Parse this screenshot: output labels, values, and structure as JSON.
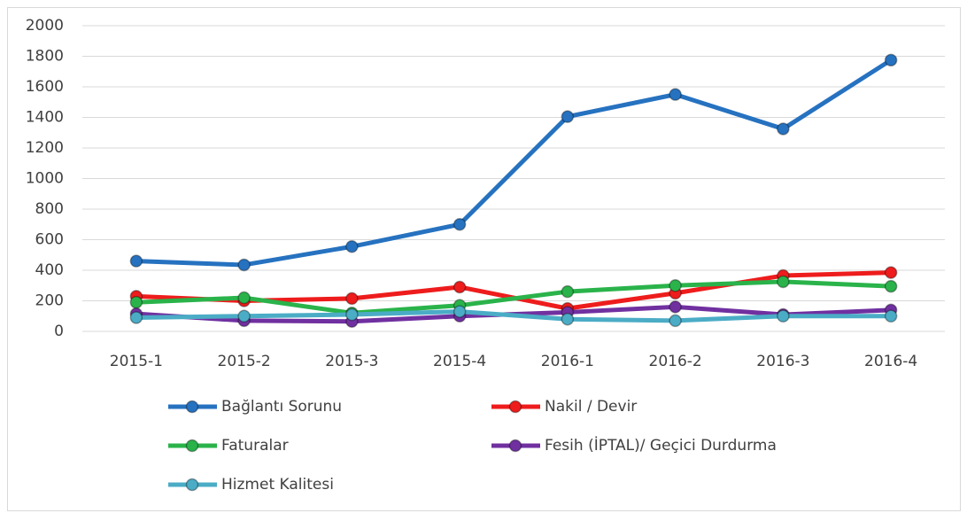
{
  "chart_data": {
    "type": "line",
    "categories": [
      "2015-1",
      "2015-2",
      "2015-3",
      "2015-4",
      "2016-1",
      "2016-2",
      "2016-3",
      "2016-4"
    ],
    "series": [
      {
        "name": "Bağlantı Sorunu",
        "color": "#2672c0",
        "values": [
          460,
          435,
          555,
          700,
          1405,
          1550,
          1325,
          1775
        ]
      },
      {
        "name": "Nakil / Devir",
        "color": "#ee1c1c",
        "values": [
          230,
          200,
          215,
          290,
          150,
          250,
          365,
          385
        ]
      },
      {
        "name": "Faturalar",
        "color": "#2ab34a",
        "values": [
          190,
          220,
          120,
          170,
          260,
          300,
          325,
          295
        ]
      },
      {
        "name": "Fesih (İPTAL)/ Geçici Durdurma",
        "color": "#7030a0",
        "values": [
          115,
          70,
          65,
          100,
          125,
          160,
          110,
          140
        ]
      },
      {
        "name": "Hizmet Kalitesi",
        "color": "#4bacc6",
        "values": [
          90,
          100,
          110,
          130,
          80,
          70,
          100,
          100
        ]
      }
    ],
    "ylim": [
      0,
      2000
    ],
    "yticks": [
      0,
      200,
      400,
      600,
      800,
      1000,
      1200,
      1400,
      1600,
      1800,
      2000
    ],
    "grid": true,
    "legend": "bottom"
  }
}
